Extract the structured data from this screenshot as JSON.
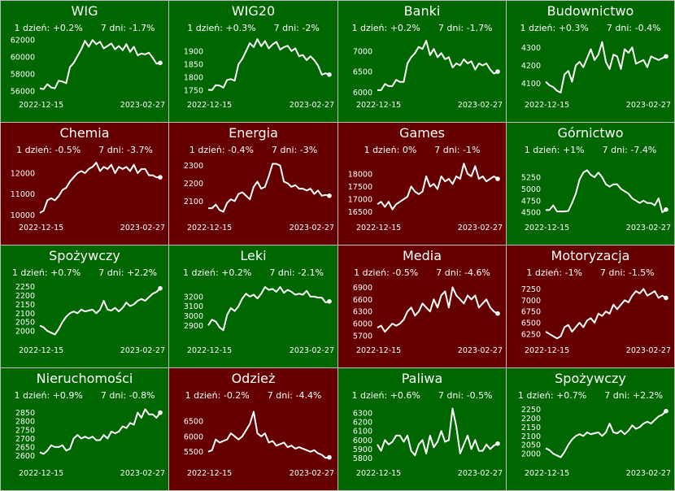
{
  "colors": {
    "up": "#006600",
    "down": "#660000",
    "line": "#ffffff",
    "border": "#bdbdbd"
  },
  "chart_data": [
    {
      "type": "line",
      "title": "WIG",
      "trend": "up",
      "day1": "1 dzień: +0.2%",
      "day7": "7 dni: -1.7%",
      "x_start": "2022-12-15",
      "x_end": "2023-02-27",
      "ylim": [
        55600,
        62400
      ],
      "yticks": [
        56000,
        58000,
        60000,
        62000
      ],
      "values": [
        56300,
        56200,
        56800,
        56400,
        56300,
        57200,
        57100,
        56900,
        58800,
        59300,
        60100,
        60900,
        61900,
        61200,
        62000,
        61500,
        61800,
        61000,
        61300,
        61600,
        60900,
        61300,
        60800,
        61500,
        60600,
        61200,
        60200,
        60400,
        60300,
        60500,
        59900,
        59200,
        59300
      ]
    },
    {
      "type": "line",
      "title": "WIG20",
      "trend": "up",
      "day1": "1 dzień: +0.3%",
      "day7": "7 dni: -2%",
      "x_start": "2022-12-15",
      "x_end": "2023-02-27",
      "ylim": [
        1735,
        1955
      ],
      "yticks": [
        1750,
        1800,
        1850,
        1900
      ],
      "values": [
        1752,
        1751,
        1770,
        1768,
        1760,
        1790,
        1793,
        1787,
        1850,
        1870,
        1900,
        1930,
        1915,
        1945,
        1918,
        1938,
        1910,
        1925,
        1935,
        1905,
        1915,
        1920,
        1900,
        1910,
        1880,
        1885,
        1865,
        1880,
        1865,
        1845,
        1810,
        1815,
        1810
      ]
    },
    {
      "type": "line",
      "title": "Banki",
      "trend": "up",
      "day1": "1 dzień: +0.2%",
      "day7": "7 dni: -1.7%",
      "x_start": "2022-12-15",
      "x_end": "2023-02-27",
      "ylim": [
        5950,
        7350
      ],
      "yticks": [
        6000,
        6500,
        7000
      ],
      "values": [
        6050,
        6050,
        6200,
        6150,
        6150,
        6300,
        6250,
        6250,
        6700,
        6850,
        6950,
        7100,
        7050,
        7250,
        6900,
        7050,
        6850,
        6950,
        6800,
        6850,
        6600,
        6700,
        6650,
        6800,
        6700,
        6750,
        6550,
        6700,
        6650,
        6700,
        6550,
        6450,
        6500
      ]
    },
    {
      "type": "line",
      "title": "Budownictwo",
      "trend": "up",
      "day1": "1 dzień: +0.3%",
      "day7": "7 dni: -0.4%",
      "x_start": "2022-12-15",
      "x_end": "2023-02-27",
      "ylim": [
        4040,
        4360
      ],
      "yticks": [
        4100,
        4200,
        4300
      ],
      "values": [
        4110,
        4090,
        4080,
        4060,
        4050,
        4150,
        4170,
        4110,
        4200,
        4220,
        4190,
        4240,
        4290,
        4230,
        4260,
        4330,
        4220,
        4180,
        4260,
        4250,
        4180,
        4290,
        4270,
        4300,
        4210,
        4220,
        4230,
        4190,
        4250,
        4240,
        4230,
        4240,
        4250
      ]
    },
    {
      "type": "line",
      "title": "Chemia",
      "trend": "down",
      "day1": "1 dzień: -0.5%",
      "day7": "7 dni: -3.7%",
      "x_start": "2022-12-15",
      "x_end": "2023-02-27",
      "ylim": [
        9900,
        12700
      ],
      "yticks": [
        10000,
        11000,
        12000
      ],
      "values": [
        10100,
        10200,
        10700,
        10800,
        10700,
        10900,
        11200,
        11300,
        11600,
        11800,
        12000,
        12100,
        12000,
        12200,
        12300,
        12500,
        12100,
        12300,
        12200,
        12400,
        12000,
        12300,
        12200,
        12300,
        12100,
        12400,
        12000,
        12200,
        12200,
        11900,
        11900,
        11800,
        11800
      ]
    },
    {
      "type": "line",
      "title": "Energia",
      "trend": "down",
      "day1": "1 dzień: -0.4%",
      "day7": "7 dni: -3%",
      "x_start": "2022-12-15",
      "x_end": "2023-02-27",
      "ylim": [
        2010,
        2340
      ],
      "yticks": [
        2100,
        2200,
        2300
      ],
      "values": [
        2060,
        2060,
        2080,
        2050,
        2040,
        2090,
        2110,
        2100,
        2140,
        2150,
        2130,
        2110,
        2180,
        2210,
        2170,
        2180,
        2240,
        2310,
        2310,
        2300,
        2210,
        2200,
        2180,
        2190,
        2170,
        2170,
        2160,
        2170,
        2140,
        2160,
        2130,
        2135,
        2130
      ]
    },
    {
      "type": "line",
      "title": "Games",
      "trend": "down",
      "day1": "1 dzień: 0%",
      "day7": "7 dni: -1%",
      "x_start": "2022-12-15",
      "x_end": "2023-02-27",
      "ylim": [
        16300,
        18600
      ],
      "yticks": [
        16500,
        17000,
        17500,
        18000
      ],
      "values": [
        16800,
        16900,
        16700,
        16900,
        16600,
        16800,
        16900,
        17000,
        17100,
        17500,
        17300,
        17200,
        17300,
        17900,
        17500,
        17600,
        17400,
        17900,
        17700,
        17800,
        17600,
        17900,
        17800,
        18400,
        18000,
        17900,
        18300,
        17800,
        17900,
        17700,
        17800,
        17900,
        17800
      ]
    },
    {
      "type": "line",
      "title": "Górnictwo",
      "trend": "up",
      "day1": "1 dzień: +1%",
      "day7": "7 dni: -7.4%",
      "x_start": "2022-12-15",
      "x_end": "2023-02-27",
      "ylim": [
        4400,
        5650
      ],
      "yticks": [
        4500,
        4750,
        5000,
        5250
      ],
      "values": [
        4550,
        4550,
        4650,
        4520,
        4520,
        4520,
        4530,
        4700,
        4900,
        5200,
        5350,
        5400,
        5300,
        5250,
        5350,
        5250,
        5100,
        5050,
        5100,
        5100,
        5000,
        4950,
        4900,
        4800,
        4750,
        4700,
        4750,
        4700,
        4700,
        4650,
        4800,
        4500,
        4560
      ]
    },
    {
      "type": "line",
      "title": "Spożywczy",
      "trend": "up",
      "day1": "1 dzień: +0.7%",
      "day7": "7 dni: +2.2%",
      "x_start": "2022-12-15",
      "x_end": "2023-02-27",
      "ylim": [
        1950,
        2280
      ],
      "yticks": [
        2000,
        2050,
        2100,
        2150,
        2200,
        2250
      ],
      "values": [
        2030,
        2020,
        2000,
        1990,
        1980,
        2010,
        2050,
        2080,
        2100,
        2110,
        2100,
        2120,
        2110,
        2115,
        2120,
        2100,
        2120,
        2170,
        2120,
        2115,
        2130,
        2110,
        2130,
        2160,
        2140,
        2150,
        2170,
        2180,
        2170,
        2190,
        2210,
        2220,
        2240
      ]
    },
    {
      "type": "line",
      "title": "Leki",
      "trend": "up",
      "day1": "1 dzień: +0.2%",
      "day7": "7 dni: -2.1%",
      "x_start": "2022-12-15",
      "x_end": "2023-02-27",
      "ylim": [
        2750,
        3360
      ],
      "yticks": [
        2900,
        3000,
        3100,
        3200
      ],
      "values": [
        2900,
        2960,
        2940,
        2880,
        2850,
        3010,
        3080,
        3050,
        3100,
        3180,
        3230,
        3200,
        3220,
        3180,
        3230,
        3300,
        3270,
        3280,
        3250,
        3300,
        3240,
        3270,
        3250,
        3220,
        3230,
        3220,
        3260,
        3200,
        3200,
        3190,
        3190,
        3140,
        3150
      ]
    },
    {
      "type": "line",
      "title": "Media",
      "trend": "down",
      "day1": "1 dzień: -0.5%",
      "day7": "7 dni: -4.6%",
      "x_start": "2022-12-15",
      "x_end": "2023-02-27",
      "ylim": [
        5600,
        7050
      ],
      "yticks": [
        5700,
        6000,
        6300,
        6600,
        6900
      ],
      "values": [
        5900,
        5950,
        5800,
        5900,
        6000,
        5950,
        6000,
        6100,
        6300,
        6400,
        6200,
        6300,
        6500,
        6400,
        6300,
        6600,
        6400,
        6700,
        6800,
        6400,
        6900,
        6700,
        6600,
        6500,
        6700,
        6600,
        6700,
        6400,
        6500,
        6600,
        6400,
        6300,
        6250
      ]
    },
    {
      "type": "line",
      "title": "Motoryzacja",
      "trend": "down",
      "day1": "1 dzień: -1%",
      "day7": "7 dni: -1.5%",
      "x_start": "2022-12-15",
      "x_end": "2023-02-27",
      "ylim": [
        6120,
        7420
      ],
      "yticks": [
        6250,
        6500,
        6750,
        7000,
        7250
      ],
      "values": [
        6300,
        6250,
        6200,
        6150,
        6200,
        6400,
        6450,
        6300,
        6400,
        6500,
        6400,
        6550,
        6600,
        6500,
        6700,
        6650,
        6750,
        6700,
        6900,
        6800,
        6900,
        7000,
        6950,
        7100,
        7200,
        7150,
        7250,
        7100,
        7150,
        7200,
        7050,
        7100,
        7050
      ]
    },
    {
      "type": "line",
      "title": "Nieruchomości",
      "trend": "up",
      "day1": "1 dzień: +0.9%",
      "day7": "7 dni: -0.8%",
      "x_start": "2022-12-15",
      "x_end": "2023-02-27",
      "ylim": [
        2560,
        2900
      ],
      "yticks": [
        2600,
        2650,
        2700,
        2750,
        2800,
        2850
      ],
      "values": [
        2620,
        2610,
        2630,
        2660,
        2650,
        2650,
        2660,
        2630,
        2640,
        2700,
        2720,
        2700,
        2710,
        2700,
        2710,
        2690,
        2690,
        2720,
        2700,
        2740,
        2730,
        2740,
        2770,
        2760,
        2790,
        2780,
        2850,
        2820,
        2870,
        2840,
        2840,
        2820,
        2850
      ]
    },
    {
      "type": "line",
      "title": "Odzież",
      "trend": "down",
      "day1": "1 dzień: -0.2%",
      "day7": "7 dni: -4.4%",
      "x_start": "2022-12-15",
      "x_end": "2023-02-27",
      "ylim": [
        5150,
        7050
      ],
      "yticks": [
        5500,
        6000,
        6500
      ],
      "values": [
        5500,
        5550,
        5900,
        5800,
        5850,
        5900,
        6100,
        6000,
        5900,
        6000,
        6200,
        6400,
        6800,
        6100,
        6000,
        6100,
        5800,
        5850,
        5700,
        5750,
        5800,
        5650,
        5700,
        5600,
        5650,
        5600,
        5550,
        5500,
        5550,
        5450,
        5400,
        5300,
        5320
      ]
    },
    {
      "type": "line",
      "title": "Paliwa",
      "trend": "up",
      "day1": "1 dzień: +0.6%",
      "day7": "7 dni: -0.5%",
      "x_start": "2022-12-15",
      "x_end": "2023-02-27",
      "ylim": [
        5750,
        6400
      ],
      "yticks": [
        5800,
        5900,
        6000,
        6100,
        6200,
        6300
      ],
      "values": [
        5950,
        5880,
        6000,
        5950,
        5980,
        6050,
        6050,
        5980,
        6050,
        5880,
        5830,
        5950,
        6000,
        5850,
        6050,
        5920,
        5980,
        6100,
        5980,
        6000,
        6350,
        6150,
        5850,
        5950,
        6050,
        5900,
        6000,
        5880,
        5880,
        5950,
        5900,
        5940,
        5960
      ]
    },
    {
      "type": "line",
      "title": "Spożywczy",
      "trend": "up",
      "day1": "1 dzień: +0.7%",
      "day7": "7 dni: +2.2%",
      "x_start": "2022-12-15",
      "x_end": "2023-02-27",
      "ylim": [
        1950,
        2280
      ],
      "yticks": [
        2000,
        2050,
        2100,
        2150,
        2200,
        2250
      ],
      "values": [
        2030,
        2020,
        2000,
        1990,
        1980,
        2010,
        2050,
        2080,
        2100,
        2110,
        2100,
        2120,
        2110,
        2115,
        2120,
        2100,
        2120,
        2170,
        2120,
        2115,
        2130,
        2110,
        2130,
        2160,
        2140,
        2150,
        2170,
        2180,
        2170,
        2190,
        2210,
        2220,
        2240
      ]
    }
  ]
}
